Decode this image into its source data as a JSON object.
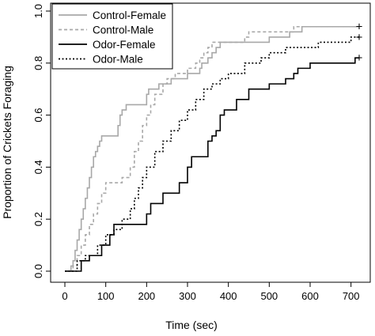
{
  "chart_data": {
    "type": "line",
    "title": "",
    "xlabel": "Time (sec)",
    "ylabel": "Proportion of Crickets Foraging",
    "xlim": [
      0,
      720
    ],
    "ylim": [
      0,
      1.0
    ],
    "x_ticks": [
      0,
      100,
      200,
      300,
      400,
      500,
      600,
      700
    ],
    "y_ticks": [
      "0.0",
      "0.2",
      "0.4",
      "0.6",
      "0.8",
      "1.0"
    ],
    "legend_position": "top-left",
    "grid": false,
    "series": [
      {
        "name": "Control-Female",
        "color": "#a8a8a8",
        "dash": "solid",
        "censor_mark": "",
        "x": [
          0,
          15,
          20,
          25,
          30,
          35,
          40,
          45,
          50,
          55,
          60,
          65,
          70,
          75,
          80,
          85,
          90,
          95,
          100,
          130,
          135,
          140,
          150,
          160,
          170,
          200,
          205,
          230,
          260,
          300,
          330,
          335,
          350,
          360,
          370,
          380,
          440,
          500,
          550,
          580,
          720
        ],
        "y": [
          0,
          0.02,
          0.04,
          0.08,
          0.12,
          0.16,
          0.2,
          0.24,
          0.28,
          0.32,
          0.36,
          0.4,
          0.44,
          0.46,
          0.48,
          0.5,
          0.52,
          0.52,
          0.52,
          0.56,
          0.6,
          0.62,
          0.64,
          0.64,
          0.64,
          0.68,
          0.7,
          0.72,
          0.74,
          0.76,
          0.78,
          0.8,
          0.82,
          0.84,
          0.86,
          0.88,
          0.88,
          0.9,
          0.92,
          0.94,
          0.94
        ]
      },
      {
        "name": "Control-Male",
        "color": "#a8a8a8",
        "dash": "dashed",
        "censor_mark": "+",
        "x": [
          0,
          20,
          30,
          40,
          50,
          60,
          70,
          80,
          90,
          100,
          140,
          160,
          170,
          180,
          190,
          200,
          210,
          220,
          240,
          250,
          270,
          300,
          320,
          330,
          340,
          350,
          360,
          420,
          440,
          450,
          460,
          500,
          560,
          600,
          720
        ],
        "y": [
          0,
          0.02,
          0.06,
          0.1,
          0.14,
          0.18,
          0.22,
          0.26,
          0.3,
          0.34,
          0.36,
          0.4,
          0.46,
          0.5,
          0.56,
          0.6,
          0.64,
          0.68,
          0.72,
          0.74,
          0.76,
          0.78,
          0.8,
          0.82,
          0.84,
          0.86,
          0.88,
          0.88,
          0.9,
          0.92,
          0.92,
          0.92,
          0.94,
          0.94,
          0.94
        ]
      },
      {
        "name": "Odor-Female",
        "color": "#000000",
        "dash": "solid",
        "censor_mark": "+",
        "x": [
          0,
          40,
          60,
          90,
          110,
          120,
          200,
          210,
          240,
          280,
          300,
          310,
          350,
          360,
          370,
          380,
          390,
          420,
          450,
          500,
          540,
          560,
          570,
          600,
          710,
          720
        ],
        "y": [
          0,
          0.04,
          0.06,
          0.1,
          0.14,
          0.18,
          0.22,
          0.26,
          0.3,
          0.34,
          0.4,
          0.44,
          0.5,
          0.52,
          0.54,
          0.6,
          0.62,
          0.66,
          0.7,
          0.72,
          0.74,
          0.76,
          0.78,
          0.8,
          0.82,
          0.82
        ]
      },
      {
        "name": "Odor-Male",
        "color": "#000000",
        "dash": "dotted",
        "censor_mark": "+",
        "x": [
          0,
          30,
          50,
          80,
          100,
          120,
          140,
          160,
          170,
          180,
          190,
          200,
          220,
          240,
          260,
          280,
          300,
          320,
          340,
          360,
          380,
          400,
          440,
          480,
          500,
          540,
          580,
          620,
          680,
          700,
          720
        ],
        "y": [
          0,
          0.04,
          0.06,
          0.1,
          0.14,
          0.16,
          0.2,
          0.24,
          0.28,
          0.32,
          0.36,
          0.4,
          0.46,
          0.5,
          0.54,
          0.58,
          0.62,
          0.66,
          0.7,
          0.72,
          0.74,
          0.76,
          0.8,
          0.82,
          0.84,
          0.86,
          0.86,
          0.88,
          0.88,
          0.9,
          0.9
        ]
      }
    ]
  }
}
